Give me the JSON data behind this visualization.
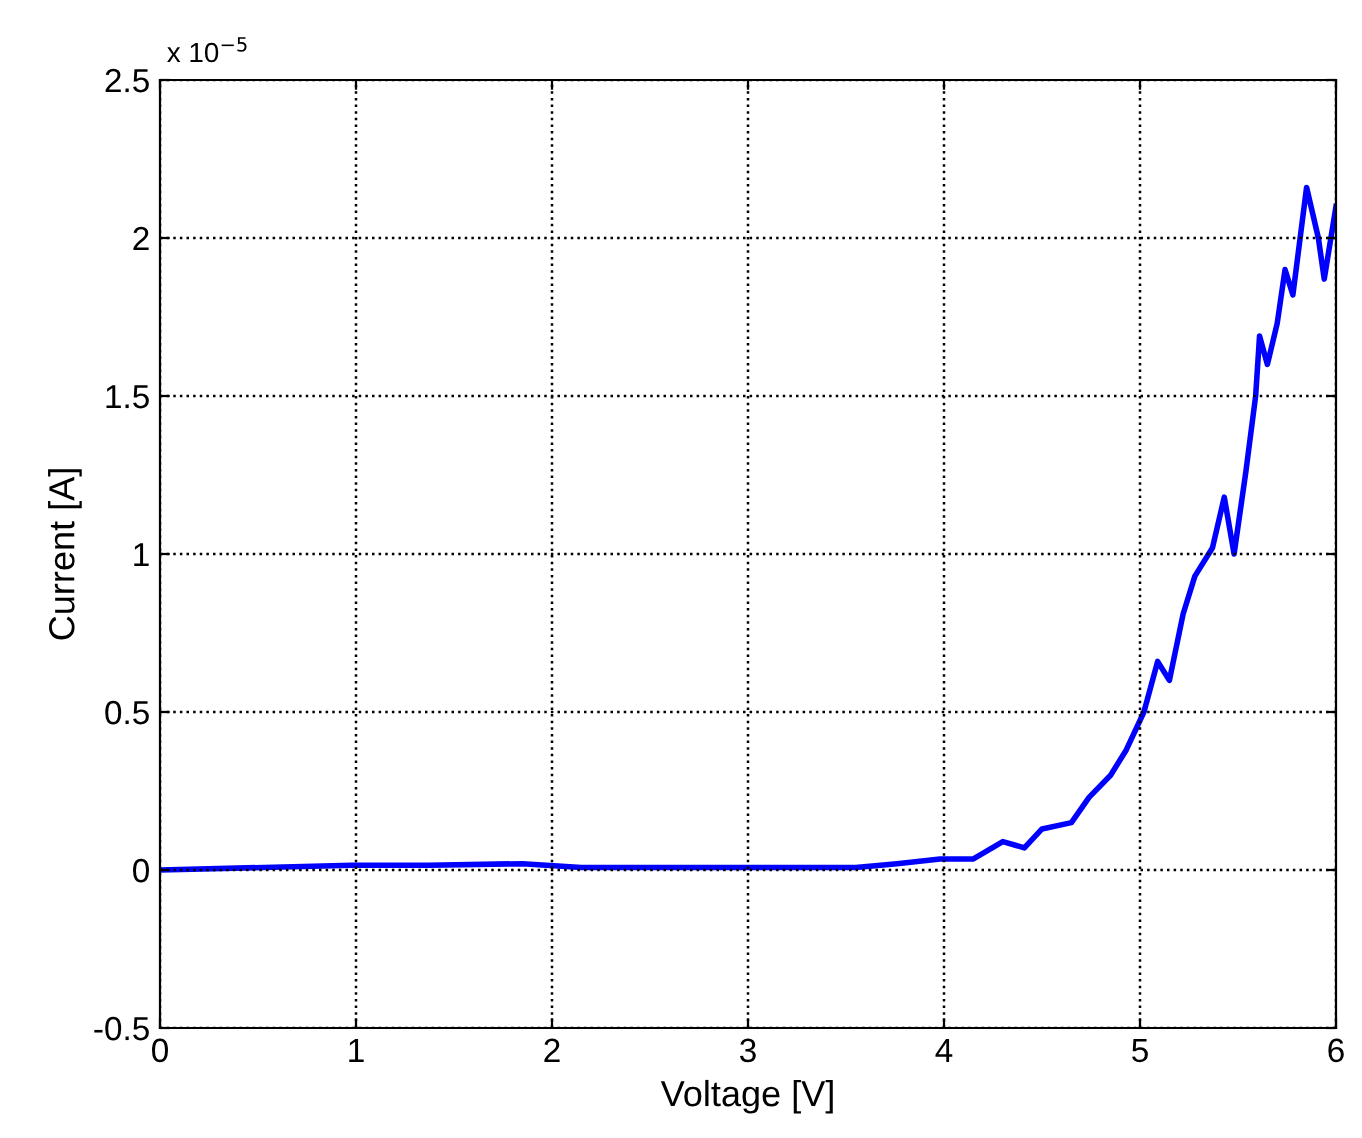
{
  "chart_data": {
    "type": "line",
    "xlabel": "Voltage [V]",
    "ylabel": "Current [A]",
    "annotations": [
      "x 10$^{−5}$"
    ],
    "x": [
      0,
      0.98,
      1.37,
      1.85,
      2.15,
      3.55,
      3.76,
      3.98,
      4.15,
      4.3,
      4.41,
      4.5,
      4.65,
      4.74,
      4.85,
      4.93,
      5.02,
      5.09,
      5.15,
      5.22,
      5.28,
      5.37,
      5.43,
      5.48,
      5.54,
      5.59,
      5.61,
      5.65,
      5.7,
      5.74,
      5.78,
      5.85,
      5.91,
      5.94,
      6.0
    ],
    "series": [
      {
        "color": "#0000ff",
        "values": [
          0,
          0.015,
          0.015,
          0.02,
          0.008,
          0.008,
          0.02,
          0.035,
          0.035,
          0.09,
          0.07,
          0.13,
          0.15,
          0.23,
          0.3,
          0.38,
          0.5,
          0.66,
          0.6,
          0.81,
          0.93,
          1.02,
          1.18,
          1.0,
          1.26,
          1.5,
          1.69,
          1.6,
          1.73,
          1.9,
          1.82,
          2.16,
          2.0,
          1.87,
          2.1
        ]
      }
    ],
    "xlim": [
      0,
      6
    ],
    "xticks": [
      0,
      1,
      2,
      3,
      4,
      5,
      6
    ],
    "ylim": [
      -0.5,
      2.5
    ],
    "yticks": [
      {
        "value": -0.5,
        "label": "-0.5"
      },
      0,
      0.5,
      1,
      1.5,
      2,
      2.5
    ],
    "grid": true,
    "line_style": "solid",
    "marker": "none"
  }
}
